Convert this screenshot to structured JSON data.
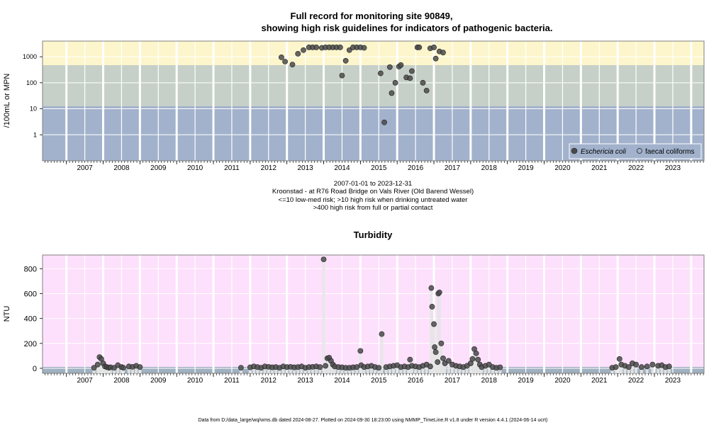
{
  "title_line1": "Full record for monitoring site 90849,",
  "title_line2": "showing high risk guidelines for indicators of pathogenic bacteria.",
  "bacteria_info": {
    "date_range": "2007-01-01 to 2023-12-31",
    "site_description": "Kroonstad - at R76 Road Bridge on Vals River (Old Barend Wessel)",
    "guideline_1": "<=10 low-med risk; >10 high risk when drinking untreated water",
    "guideline_2": ">400 high risk from full or partial contact"
  },
  "legend": {
    "ecoli": "Eschericia coli",
    "faecal": "faecal coliforms"
  },
  "turbidity_title": "Turbidity",
  "footer": "Data from D:/data_large/wq/wms.db dated 2024-08-27. Plotted on 2024-09-30 18:23:00 using NMMP_TimeLine.R v1.8 under R version 4.4.1 (2024-06-14 ucrt)",
  "colors": {
    "high_risk_band": "#fdf6cc",
    "mid_risk_band": "#c6d0c8",
    "low_risk_band": "#a2b2cc",
    "turbidity_bg": "#fde0fc",
    "turbidity_base_band": "#9fb0c0",
    "point_fill": "#4a4a4a",
    "grid": "#ffffff"
  },
  "chart_data": [
    {
      "type": "scatter",
      "title": "Full record for monitoring site 90849, showing high risk guidelines for indicators of pathogenic bacteria.",
      "ylabel": "/100mL or MPN",
      "y_scale": "log",
      "ylim": [
        0.1,
        4000
      ],
      "xlim": [
        2006.35,
        2024.35
      ],
      "yticks": [
        1,
        10,
        100,
        1000
      ],
      "ytick_labels": [
        "1",
        "10",
        "100",
        "1000"
      ],
      "xticks": [
        2007,
        2008,
        2009,
        2010,
        2011,
        2012,
        2013,
        2014,
        2015,
        2016,
        2017,
        2018,
        2019,
        2020,
        2021,
        2022,
        2023
      ],
      "bands": [
        {
          "from": 0.1,
          "to": 10,
          "color": "#a2b2cc"
        },
        {
          "from": 10,
          "to": 400,
          "color": "#c6d0c8"
        },
        {
          "from": 400,
          "to": 4000,
          "color": "#fdf6cc"
        }
      ],
      "grid": true,
      "legend_position": "bottom-right",
      "series": [
        {
          "name": "Eschericia coli",
          "marker": "filled-circle",
          "x": [
            2012.85,
            2012.95,
            2013.15,
            2013.3,
            2013.45,
            2013.6,
            2013.7,
            2013.8,
            2013.95,
            2014.05,
            2014.15,
            2014.25,
            2014.35,
            2014.45,
            2014.5,
            2014.6,
            2014.7,
            2014.8,
            2014.9,
            2015.0,
            2015.1,
            2015.55,
            2015.65,
            2015.8,
            2015.85,
            2015.95,
            2016.05,
            2016.1,
            2016.25,
            2016.35,
            2016.4,
            2016.55,
            2016.6,
            2016.7,
            2016.8,
            2016.9,
            2017.0,
            2017.05,
            2017.15,
            2017.25
          ],
          "y": [
            950,
            650,
            500,
            1300,
            1800,
            2300,
            2300,
            2300,
            2200,
            2300,
            2300,
            2300,
            2300,
            2300,
            190,
            700,
            1800,
            2300,
            2300,
            2300,
            2200,
            230,
            3,
            400,
            40,
            100,
            420,
            480,
            160,
            150,
            280,
            2300,
            2300,
            100,
            50,
            2100,
            2300,
            850,
            1600,
            1450
          ]
        },
        {
          "name": "faecal coliforms",
          "marker": "open-circle",
          "x": [],
          "y": []
        }
      ]
    },
    {
      "type": "scatter",
      "title": "Turbidity",
      "ylabel": "NTU",
      "ylim": [
        -40,
        910
      ],
      "xlim": [
        2006.35,
        2024.35
      ],
      "yticks": [
        0,
        200,
        400,
        600,
        800
      ],
      "ytick_labels": [
        "0",
        "200",
        "400",
        "600",
        "800"
      ],
      "xticks": [
        2007,
        2008,
        2009,
        2010,
        2011,
        2012,
        2013,
        2014,
        2015,
        2016,
        2017,
        2018,
        2019,
        2020,
        2021,
        2022,
        2023
      ],
      "grid": true,
      "series": [
        {
          "name": "",
          "marker": "filled-circle",
          "x": [
            2007.75,
            2007.85,
            2007.9,
            2007.95,
            2008.0,
            2008.05,
            2008.1,
            2008.15,
            2008.2,
            2008.3,
            2008.4,
            2008.5,
            2008.55,
            2008.7,
            2008.8,
            2008.9,
            2009.0,
            2011.75,
            2012.0,
            2012.1,
            2012.2,
            2012.3,
            2012.4,
            2012.5,
            2012.6,
            2012.7,
            2012.8,
            2012.9,
            2013.0,
            2013.1,
            2013.2,
            2013.3,
            2013.4,
            2013.5,
            2013.6,
            2013.7,
            2013.8,
            2013.9,
            2014.0,
            2014.05,
            2014.1,
            2014.15,
            2014.2,
            2014.25,
            2014.3,
            2014.4,
            2014.5,
            2014.6,
            2014.7,
            2014.8,
            2014.9,
            2015.0,
            2015.02,
            2015.1,
            2015.2,
            2015.3,
            2015.4,
            2015.5,
            2015.58,
            2015.7,
            2015.8,
            2015.9,
            2016.0,
            2016.1,
            2016.2,
            2016.3,
            2016.35,
            2016.4,
            2016.5,
            2016.6,
            2016.7,
            2016.8,
            2016.9,
            2016.93,
            2016.95,
            2017.0,
            2017.02,
            2017.05,
            2017.1,
            2017.12,
            2017.15,
            2017.2,
            2017.25,
            2017.3,
            2017.4,
            2017.5,
            2017.6,
            2017.7,
            2017.8,
            2017.9,
            2018.0,
            2018.05,
            2018.1,
            2018.15,
            2018.2,
            2018.25,
            2018.3,
            2018.4,
            2018.5,
            2018.6,
            2018.7,
            2018.8,
            2021.85,
            2021.95,
            2022.05,
            2022.1,
            2022.2,
            2022.3,
            2022.4,
            2022.5,
            2022.65,
            2022.8,
            2022.95,
            2023.1,
            2023.2,
            2023.3,
            2023.4
          ],
          "y": [
            5,
            30,
            90,
            75,
            40,
            15,
            10,
            5,
            8,
            5,
            25,
            10,
            5,
            15,
            12,
            20,
            10,
            5,
            8,
            15,
            10,
            5,
            15,
            12,
            8,
            10,
            5,
            15,
            10,
            12,
            8,
            10,
            15,
            5,
            10,
            12,
            15,
            10,
            875,
            20,
            80,
            85,
            60,
            30,
            15,
            10,
            8,
            5,
            5,
            8,
            10,
            140,
            25,
            10,
            15,
            20,
            10,
            5,
            275,
            10,
            15,
            20,
            25,
            10,
            15,
            10,
            70,
            20,
            15,
            10,
            20,
            30,
            15,
            645,
            495,
            355,
            170,
            130,
            50,
            600,
            610,
            200,
            80,
            40,
            60,
            30,
            20,
            15,
            10,
            20,
            40,
            75,
            155,
            120,
            70,
            30,
            10,
            20,
            30,
            10,
            5,
            8,
            5,
            10,
            75,
            30,
            20,
            10,
            40,
            30,
            10,
            15,
            30,
            20,
            25,
            10,
            15
          ]
        }
      ]
    }
  ]
}
